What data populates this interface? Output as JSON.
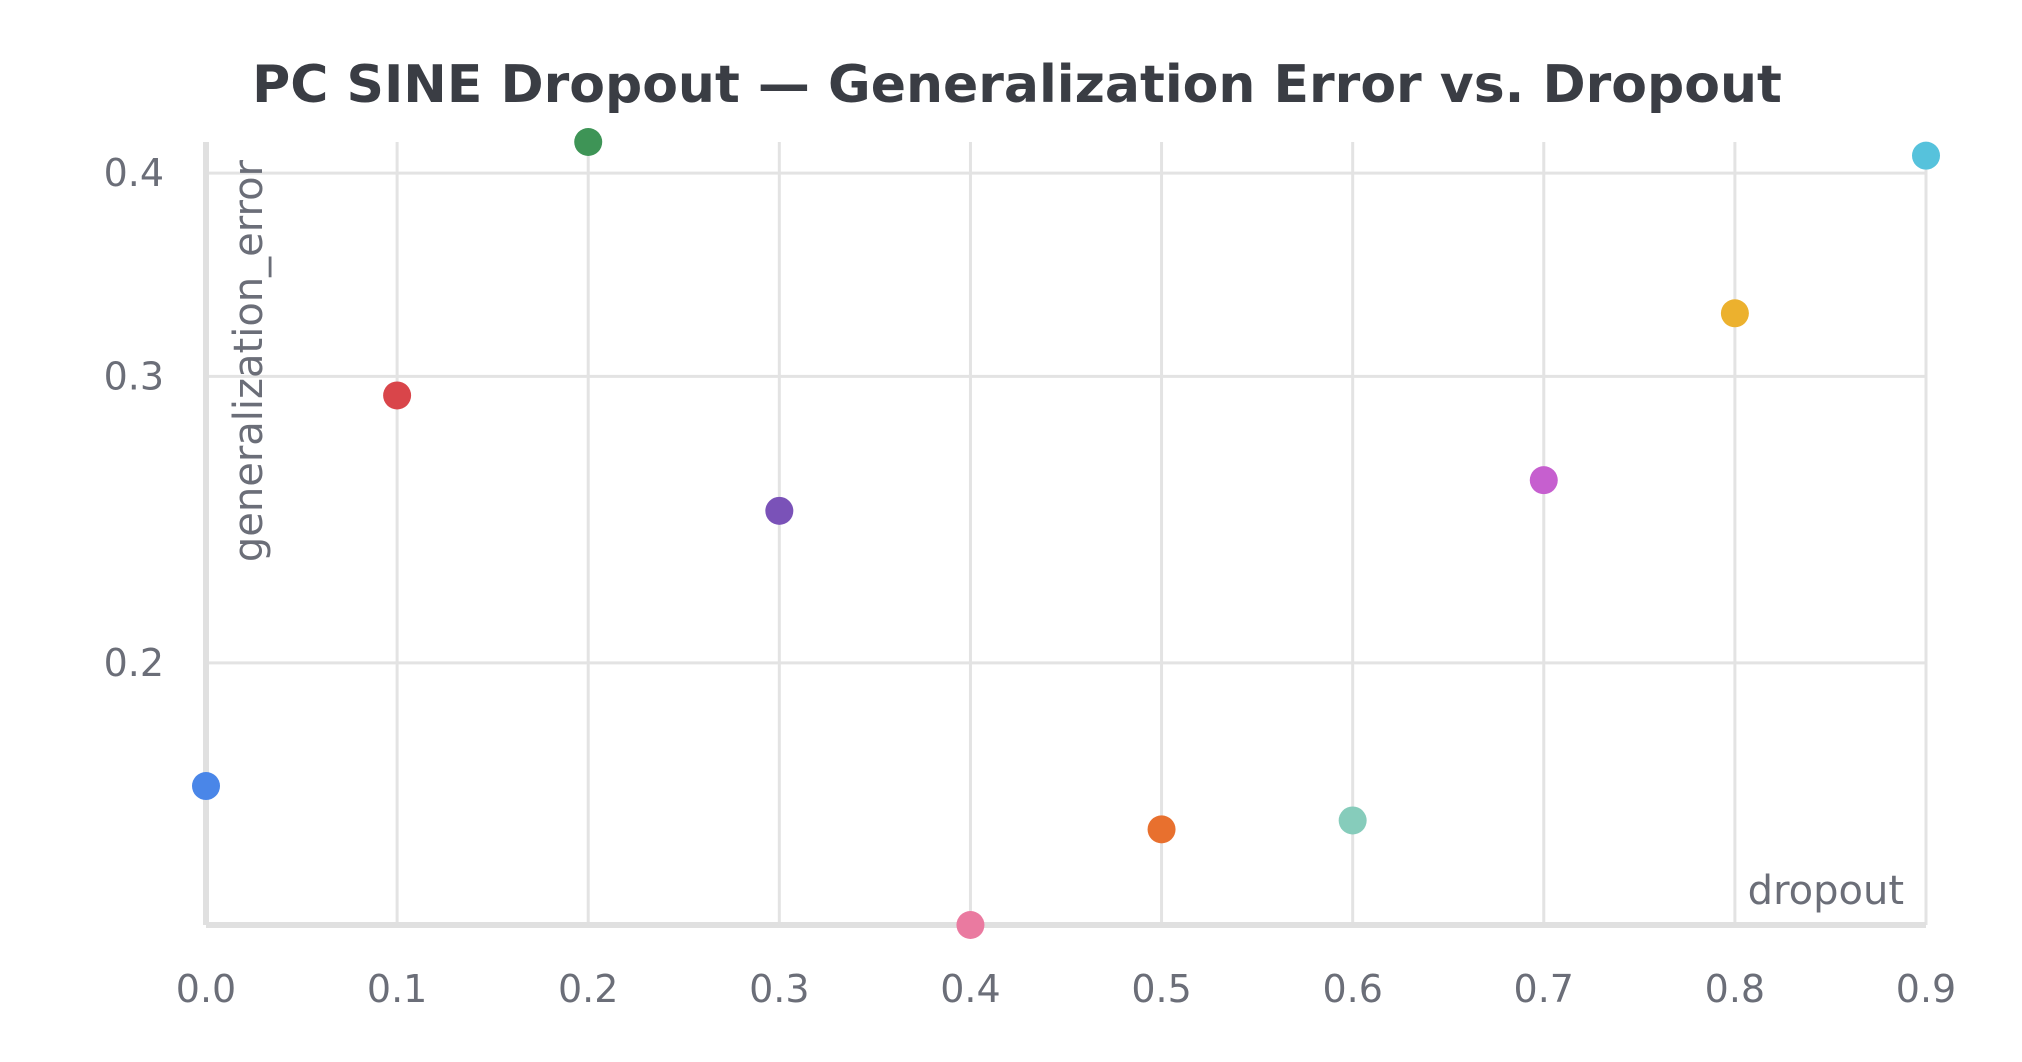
{
  "chart_data": {
    "type": "scatter",
    "title": "PC SINE Dropout — Generalization Error vs. Dropout",
    "xlabel": "dropout",
    "ylabel": "generalization_error",
    "x_ticks": [
      "0.0",
      "0.1",
      "0.2",
      "0.3",
      "0.4",
      "0.5",
      "0.6",
      "0.7",
      "0.8",
      "0.9"
    ],
    "y_ticks": [
      "0.2",
      "0.3",
      "0.4"
    ],
    "xlim": [
      0.0,
      0.9
    ],
    "y_scale": "log",
    "ylim": [
      0.138,
      0.418
    ],
    "grid": true,
    "points": [
      {
        "x": 0.0,
        "y": 0.168,
        "color": "#4a86e8"
      },
      {
        "x": 0.1,
        "y": 0.292,
        "color": "#d9454a"
      },
      {
        "x": 0.2,
        "y": 0.418,
        "color": "#3e9456"
      },
      {
        "x": 0.3,
        "y": 0.248,
        "color": "#7a52b8"
      },
      {
        "x": 0.4,
        "y": 0.138,
        "color": "#ea7aa0"
      },
      {
        "x": 0.5,
        "y": 0.158,
        "color": "#e8702e"
      },
      {
        "x": 0.6,
        "y": 0.16,
        "color": "#86ccbb"
      },
      {
        "x": 0.7,
        "y": 0.259,
        "color": "#c65fcf"
      },
      {
        "x": 0.8,
        "y": 0.328,
        "color": "#ecb12e"
      },
      {
        "x": 0.9,
        "y": 0.41,
        "color": "#56c2dc"
      }
    ]
  }
}
